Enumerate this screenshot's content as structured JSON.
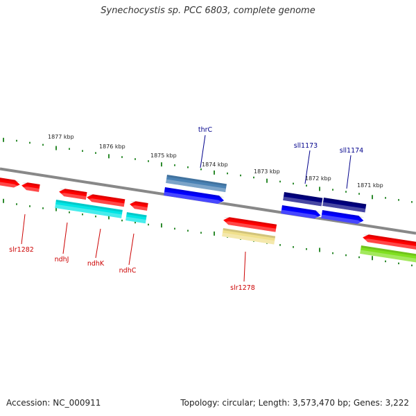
{
  "title": "Synechocystis sp. PCC 6803, complete genome",
  "footer": {
    "accession": "Accession: NC_000911",
    "summary": "Topology: circular; Length: 3,573,470 bp; Genes: 3,222"
  },
  "colors": {
    "backbone": "#888888",
    "ruler_tick": "#2e8b2e",
    "forward_label": "#00008b",
    "reverse_label": "#cc0000",
    "red_gene": "#ff0000",
    "blue_gene": "#0000ff",
    "navy_gene": "#000080",
    "steel_blue_gene": "#4a82b4",
    "cyan_gene": "#00e5e5",
    "khaki_gene": "#f0e08c",
    "lime_gene": "#80e020"
  },
  "kbp_labels": [
    "1877 kbp",
    "1876 kbp",
    "1875 kbp",
    "1874 kbp",
    "1873 kbp",
    "1872 kbp",
    "1871 kbp"
  ],
  "gene_labels": {
    "forward": [
      "thrC",
      "sll1173",
      "sll1174"
    ],
    "reverse": [
      "slr1282",
      "ndhJ",
      "ndhK",
      "ndhC",
      "slr1278"
    ]
  }
}
